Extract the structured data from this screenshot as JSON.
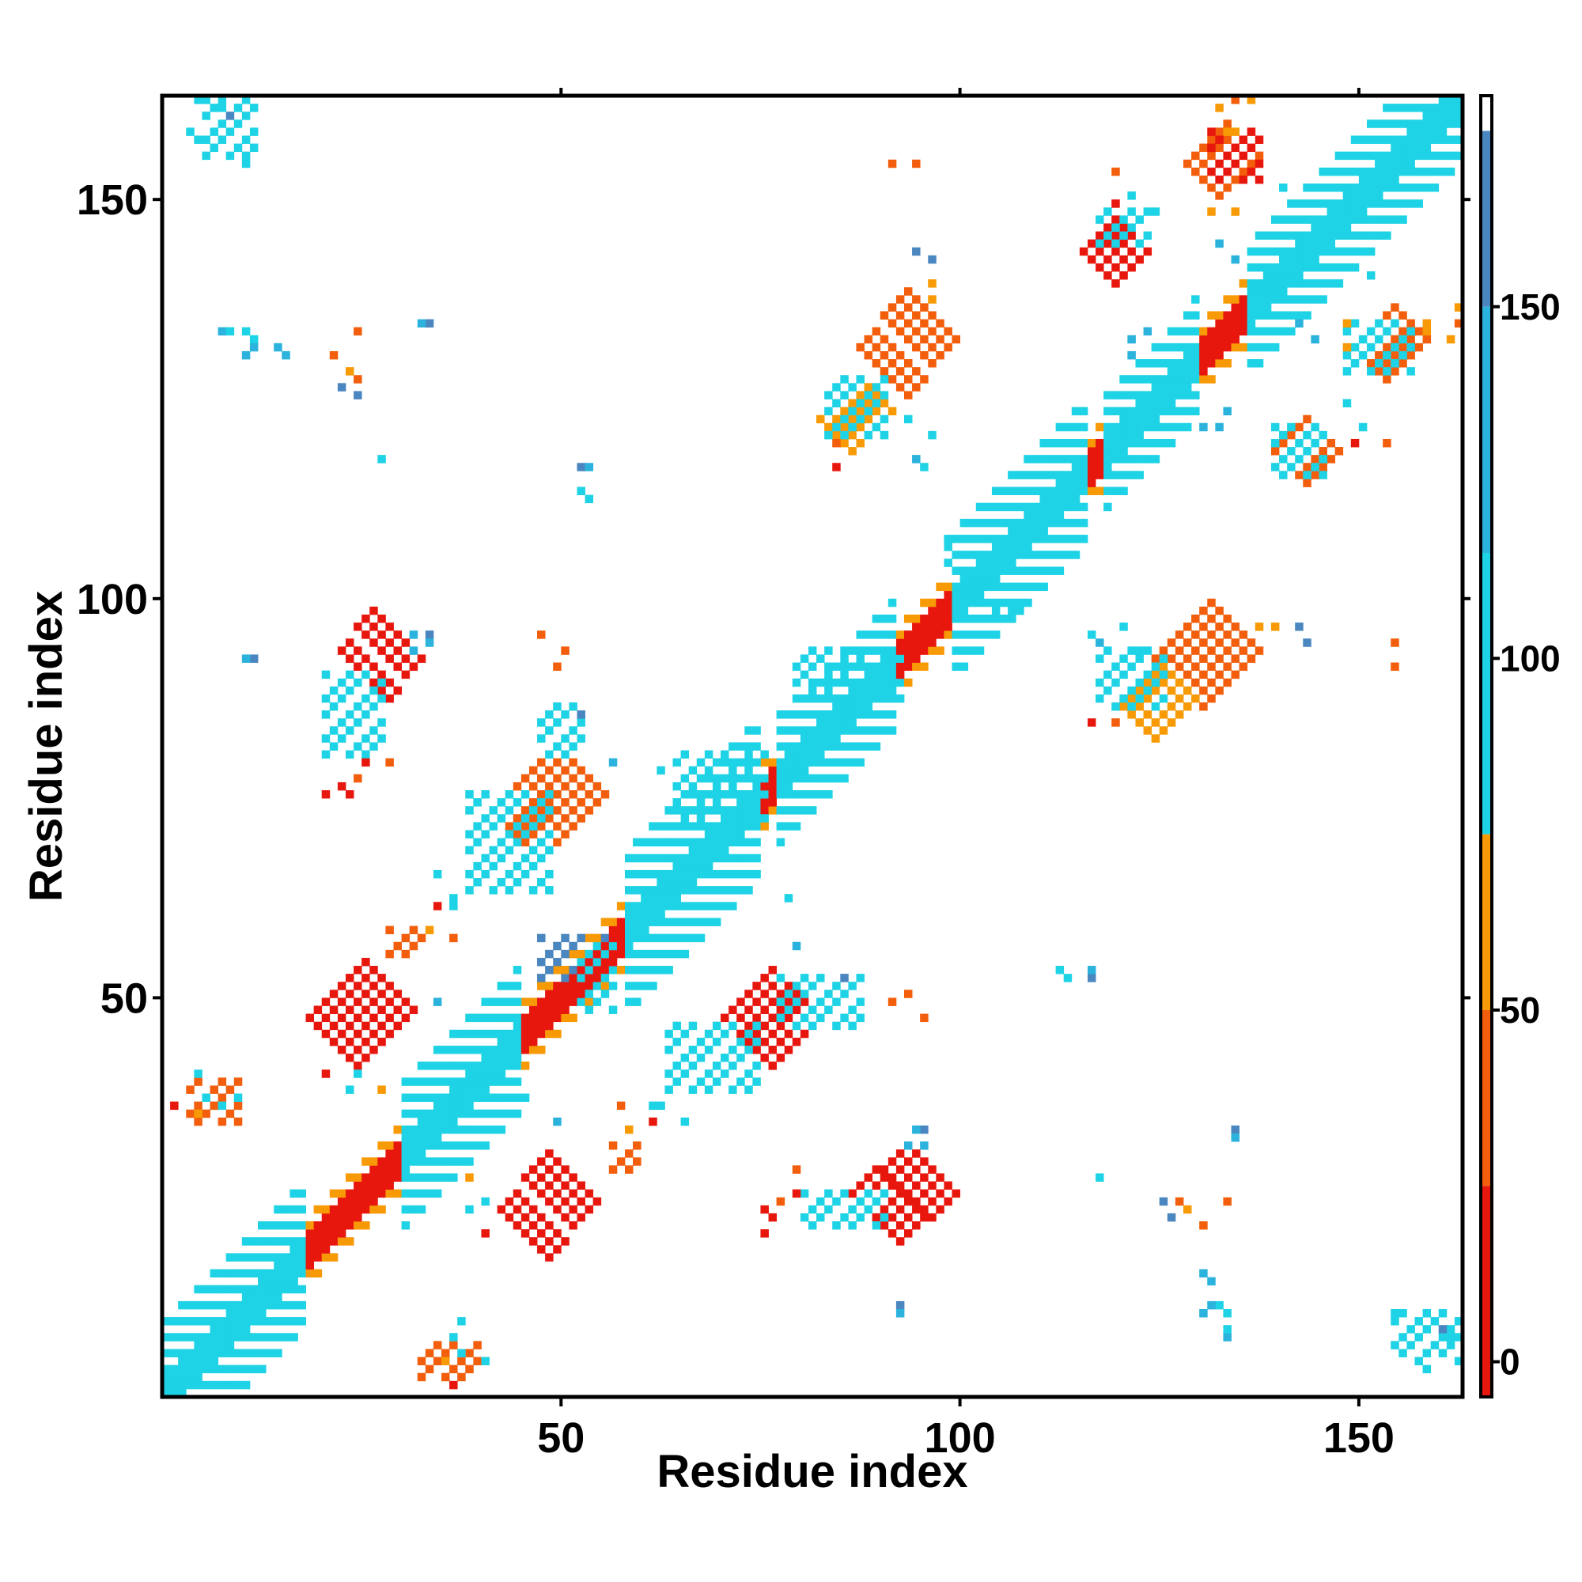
{
  "chart_data": {
    "type": "heatmap",
    "title": "",
    "xlabel": "Residue index",
    "ylabel": "Residue index",
    "xlim": [
      0,
      163
    ],
    "ylim": [
      0,
      163
    ],
    "x_ticks": [
      50,
      100,
      150
    ],
    "y_ticks": [
      50,
      100,
      150
    ],
    "grid": false,
    "colorbar": {
      "range": [
        -5,
        180
      ],
      "ticks": [
        0,
        50,
        100,
        150
      ],
      "bands": [
        {
          "from": -5,
          "to": 25,
          "color": "#e8170e"
        },
        {
          "from": 25,
          "to": 50,
          "color": "#f25e0b"
        },
        {
          "from": 50,
          "to": 75,
          "color": "#f79a06"
        },
        {
          "from": 75,
          "to": 115,
          "color": "#1fd3e6"
        },
        {
          "from": 115,
          "to": 150,
          "color": "#2bb3dd"
        },
        {
          "from": 150,
          "to": 175,
          "color": "#4a86bf"
        },
        {
          "from": 175,
          "to": 180,
          "color": "#ffffff"
        }
      ]
    },
    "regions": [
      {
        "kind": "diag",
        "x": [
          0,
          163
        ],
        "w": 4,
        "color": "#f79a06"
      },
      {
        "kind": "diag",
        "x": [
          0,
          163
        ],
        "w": 2,
        "color": "#e8170e"
      },
      {
        "kind": "diag",
        "x": [
          0,
          18
        ],
        "w": 9,
        "color": "#1fd3e6"
      },
      {
        "kind": "diag",
        "x": [
          30,
          45
        ],
        "w": 9,
        "color": "#1fd3e6"
      },
      {
        "kind": "diag",
        "x": [
          58,
          75
        ],
        "w": 10,
        "color": "#1fd3e6"
      },
      {
        "kind": "diag",
        "x": [
          77,
          92
        ],
        "w": 8,
        "color": "#1fd3e6"
      },
      {
        "kind": "diag",
        "x": [
          99,
          116
        ],
        "w": 9,
        "color": "#1fd3e6"
      },
      {
        "kind": "diag",
        "x": [
          118,
          130
        ],
        "w": 7,
        "color": "#1fd3e6"
      },
      {
        "kind": "diag",
        "x": [
          136,
          163
        ],
        "w": 8,
        "color": "#1fd3e6"
      },
      {
        "kind": "anti",
        "x": [
          25,
          29
        ],
        "y": [
          90,
          95
        ],
        "w": 3,
        "color": "#e8170e"
      },
      {
        "kind": "anti",
        "x": [
          21,
          28
        ],
        "y": [
          44,
          51
        ],
        "w": 3,
        "color": "#e8170e"
      },
      {
        "kind": "anti",
        "x": [
          45,
          51
        ],
        "y": [
          20,
          27
        ],
        "w": 3,
        "color": "#e8170e"
      },
      {
        "kind": "anti",
        "x": [
          44,
          52
        ],
        "y": [
          70,
          78
        ],
        "w": 3,
        "color": "#f25e0b"
      },
      {
        "kind": "anti",
        "x": [
          73,
          79
        ],
        "y": [
          44,
          50
        ],
        "w": 3,
        "color": "#e8170e"
      },
      {
        "kind": "anti",
        "x": [
          89,
          96
        ],
        "y": [
          22,
          28
        ],
        "w": 3,
        "color": "#e8170e"
      },
      {
        "kind": "anti",
        "x": [
          90,
          96
        ],
        "y": [
          128,
          135
        ],
        "w": 3,
        "color": "#f25e0b"
      },
      {
        "kind": "anti",
        "x": [
          84,
          89
        ],
        "y": [
          120,
          125
        ],
        "w": 2,
        "color": "#f79a06"
      },
      {
        "kind": "anti",
        "x": [
          127,
          134
        ],
        "y": [
          89,
          96
        ],
        "w": 3,
        "color": "#f25e0b"
      },
      {
        "kind": "anti",
        "x": [
          122,
          127
        ],
        "y": [
          84,
          89
        ],
        "w": 2,
        "color": "#f79a06"
      },
      {
        "kind": "anti",
        "x": [
          130,
          135
        ],
        "y": [
          152,
          157
        ],
        "w": 2,
        "color": "#f25e0b"
      },
      {
        "kind": "anti",
        "x": [
          117,
          121
        ],
        "y": [
          141,
          145
        ],
        "w": 2,
        "color": "#e8170e"
      },
      {
        "kind": "anti",
        "x": [
          141,
          145
        ],
        "y": [
          116,
          120
        ],
        "w": 2,
        "color": "#f25e0b"
      },
      {
        "kind": "anti",
        "x": [
          151,
          156
        ],
        "y": [
          129,
          134
        ],
        "w": 2,
        "color": "#f25e0b"
      },
      {
        "kind": "box",
        "x": [
          5,
          11
        ],
        "y": [
          155,
          162
        ],
        "color": "#1fd3e6"
      },
      {
        "kind": "box",
        "x": [
          154,
          162
        ],
        "y": [
          5,
          10
        ],
        "color": "#1fd3e6"
      },
      {
        "kind": "box",
        "x": [
          20,
          27
        ],
        "y": [
          80,
          90
        ],
        "color": "#1fd3e6"
      },
      {
        "kind": "box",
        "x": [
          47,
          52
        ],
        "y": [
          80,
          86
        ],
        "color": "#1fd3e6"
      },
      {
        "kind": "box",
        "x": [
          38,
          48
        ],
        "y": [
          63,
          75
        ],
        "color": "#1fd3e6"
      },
      {
        "kind": "box",
        "x": [
          47,
          56
        ],
        "y": [
          52,
          57
        ],
        "color": "#4a86bf"
      },
      {
        "kind": "box",
        "x": [
          52,
          56
        ],
        "y": [
          48,
          56
        ],
        "color": "#1fd3e6"
      },
      {
        "kind": "box",
        "x": [
          77,
          87
        ],
        "y": [
          46,
          52
        ],
        "color": "#1fd3e6"
      },
      {
        "kind": "box",
        "x": [
          63,
          74
        ],
        "y": [
          38,
          46
        ],
        "color": "#1fd3e6"
      },
      {
        "kind": "box",
        "x": [
          80,
          90
        ],
        "y": [
          21,
          25
        ],
        "color": "#1fd3e6"
      },
      {
        "kind": "box",
        "x": [
          79,
          92
        ],
        "y": [
          87,
          93
        ],
        "color": "#1fd3e6"
      },
      {
        "kind": "box",
        "x": [
          64,
          75
        ],
        "y": [
          72,
          80
        ],
        "color": "#1fd3e6"
      },
      {
        "kind": "box",
        "x": [
          117,
          125
        ],
        "y": [
          86,
          93
        ],
        "color": "#1fd3e6"
      },
      {
        "kind": "box",
        "x": [
          83,
          90
        ],
        "y": [
          120,
          127
        ],
        "color": "#1fd3e6"
      },
      {
        "kind": "box",
        "x": [
          139,
          145
        ],
        "y": [
          115,
          121
        ],
        "color": "#1fd3e6"
      },
      {
        "kind": "box",
        "x": [
          117,
          123
        ],
        "y": [
          144,
          148
        ],
        "color": "#1fd3e6"
      },
      {
        "kind": "box",
        "x": [
          148,
          156
        ],
        "y": [
          128,
          134
        ],
        "color": "#1fd3e6"
      },
      {
        "kind": "box",
        "x": [
          3,
          9
        ],
        "y": [
          34,
          39
        ],
        "color": "#f25e0b"
      },
      {
        "kind": "box",
        "x": [
          28,
          32
        ],
        "y": [
          55,
          58
        ],
        "color": "#f25e0b"
      },
      {
        "kind": "box",
        "x": [
          56,
          59
        ],
        "y": [
          28,
          31
        ],
        "color": "#f25e0b"
      },
      {
        "kind": "box",
        "x": [
          32,
          39
        ],
        "y": [
          2,
          6
        ],
        "color": "#f25e0b"
      },
      {
        "kind": "box",
        "x": [
          131,
          137
        ],
        "y": [
          152,
          158
        ],
        "color": "#e8170e"
      }
    ],
    "points": [
      [
        7,
        161,
        "#1fd3e6"
      ],
      [
        4,
        157,
        "#1fd3e6"
      ],
      [
        10,
        154,
        "#1fd3e6"
      ],
      [
        8,
        160,
        "#4a86bf"
      ],
      [
        7,
        133,
        "#2bb3dd"
      ],
      [
        11,
        132,
        "#1fd3e6"
      ],
      [
        14,
        131,
        "#2bb3dd"
      ],
      [
        10,
        130,
        "#2bb3dd"
      ],
      [
        24,
        127,
        "#f25e0b"
      ],
      [
        23,
        128,
        "#f79a06"
      ],
      [
        33,
        134,
        "#4a86bf"
      ],
      [
        24,
        125,
        "#4a86bf"
      ],
      [
        27,
        117,
        "#1fd3e6"
      ],
      [
        52,
        116,
        "#4a86bf"
      ],
      [
        52,
        113,
        "#1fd3e6"
      ],
      [
        11,
        92,
        "#4a86bf"
      ],
      [
        33,
        95,
        "#4a86bf"
      ],
      [
        33,
        94,
        "#2bb3dd"
      ],
      [
        28,
        79,
        "#f25e0b"
      ],
      [
        20,
        75,
        "#e8170e"
      ],
      [
        22,
        76,
        "#e8170e"
      ],
      [
        39,
        74,
        "#1fd3e6"
      ],
      [
        47,
        95,
        "#f25e0b"
      ],
      [
        56,
        79,
        "#2bb3dd"
      ],
      [
        62,
        78,
        "#1fd3e6"
      ],
      [
        34,
        61,
        "#e8170e"
      ],
      [
        36,
        62,
        "#1fd3e6"
      ],
      [
        20,
        40,
        "#e8170e"
      ],
      [
        24,
        40,
        "#1fd3e6"
      ],
      [
        23,
        38,
        "#1fd3e6"
      ],
      [
        27,
        38,
        "#f79a06"
      ],
      [
        1,
        36,
        "#e8170e"
      ],
      [
        4,
        35,
        "#f79a06"
      ],
      [
        9,
        37,
        "#1fd3e6"
      ],
      [
        39,
        35,
        "#1fd3e6"
      ],
      [
        45,
        37,
        "#1fd3e6"
      ],
      [
        49,
        34,
        "#2bb3dd"
      ],
      [
        57,
        36,
        "#f25e0b"
      ],
      [
        58,
        33,
        "#f79a06"
      ],
      [
        61,
        36,
        "#1fd3e6"
      ],
      [
        65,
        34,
        "#1fd3e6"
      ],
      [
        37,
        5,
        "#1fd3e6"
      ],
      [
        36,
        7,
        "#1fd3e6"
      ],
      [
        40,
        4,
        "#1fd3e6"
      ],
      [
        75,
        23,
        "#e8170e"
      ],
      [
        77,
        24,
        "#f25e0b"
      ],
      [
        79,
        25,
        "#e8170e"
      ],
      [
        82,
        22,
        "#1fd3e6"
      ],
      [
        92,
        10,
        "#2bb3dd"
      ],
      [
        95,
        31,
        "#2bb3dd"
      ],
      [
        93,
        31,
        "#2bb3dd"
      ],
      [
        91,
        49,
        "#f25e0b"
      ],
      [
        93,
        50,
        "#f25e0b"
      ],
      [
        85,
        52,
        "#4a86bf"
      ],
      [
        112,
        53,
        "#1fd3e6"
      ],
      [
        116,
        53,
        "#2bb3dd"
      ],
      [
        117,
        27,
        "#1fd3e6"
      ],
      [
        126,
        22,
        "#4a86bf"
      ],
      [
        130,
        21,
        "#f25e0b"
      ],
      [
        133,
        24,
        "#f25e0b"
      ],
      [
        134,
        32,
        "#2bb3dd"
      ],
      [
        130,
        15,
        "#2bb3dd"
      ],
      [
        131,
        11,
        "#2bb3dd"
      ],
      [
        133,
        10,
        "#1fd3e6"
      ],
      [
        133,
        8,
        "#1fd3e6"
      ],
      [
        162,
        4,
        "#1fd3e6"
      ],
      [
        158,
        3,
        "#1fd3e6"
      ],
      [
        116,
        95,
        "#1fd3e6"
      ],
      [
        117,
        94,
        "#2bb3dd"
      ],
      [
        142,
        96,
        "#2bb3dd"
      ],
      [
        137,
        96,
        "#f79a06"
      ],
      [
        154,
        94,
        "#f25e0b"
      ],
      [
        116,
        84,
        "#e8170e"
      ],
      [
        119,
        84,
        "#f25e0b"
      ],
      [
        93,
        122,
        "#1fd3e6"
      ],
      [
        96,
        120,
        "#1fd3e6"
      ],
      [
        98,
        106,
        "#1fd3e6"
      ],
      [
        98,
        104,
        "#1fd3e6"
      ],
      [
        104,
        98,
        "#1fd3e6"
      ],
      [
        107,
        98,
        "#1fd3e6"
      ],
      [
        94,
        143,
        "#4a86bf"
      ],
      [
        96,
        142,
        "#4a86bf"
      ],
      [
        91,
        154,
        "#f25e0b"
      ],
      [
        96,
        139,
        "#f79a06"
      ],
      [
        123,
        133,
        "#2bb3dd"
      ],
      [
        130,
        121,
        "#2bb3dd"
      ],
      [
        132,
        121,
        "#2bb3dd"
      ],
      [
        119,
        149,
        "#e8170e"
      ],
      [
        124,
        148,
        "#1fd3e6"
      ],
      [
        131,
        148,
        "#f79a06"
      ],
      [
        134,
        148,
        "#f79a06"
      ],
      [
        134,
        162,
        "#f25e0b"
      ],
      [
        132,
        161,
        "#f79a06"
      ],
      [
        136,
        162,
        "#f79a06"
      ],
      [
        132,
        144,
        "#2bb3dd"
      ],
      [
        137,
        129,
        "#1fd3e6"
      ],
      [
        142,
        134,
        "#2bb3dd"
      ],
      [
        147,
        141,
        "#1fd3e6"
      ],
      [
        151,
        140,
        "#1fd3e6"
      ],
      [
        150,
        121,
        "#1fd3e6"
      ],
      [
        153,
        119,
        "#f25e0b"
      ],
      [
        158,
        134,
        "#f79a06"
      ],
      [
        158,
        133,
        "#f79a06"
      ],
      [
        147,
        151,
        "#1fd3e6"
      ]
    ]
  }
}
